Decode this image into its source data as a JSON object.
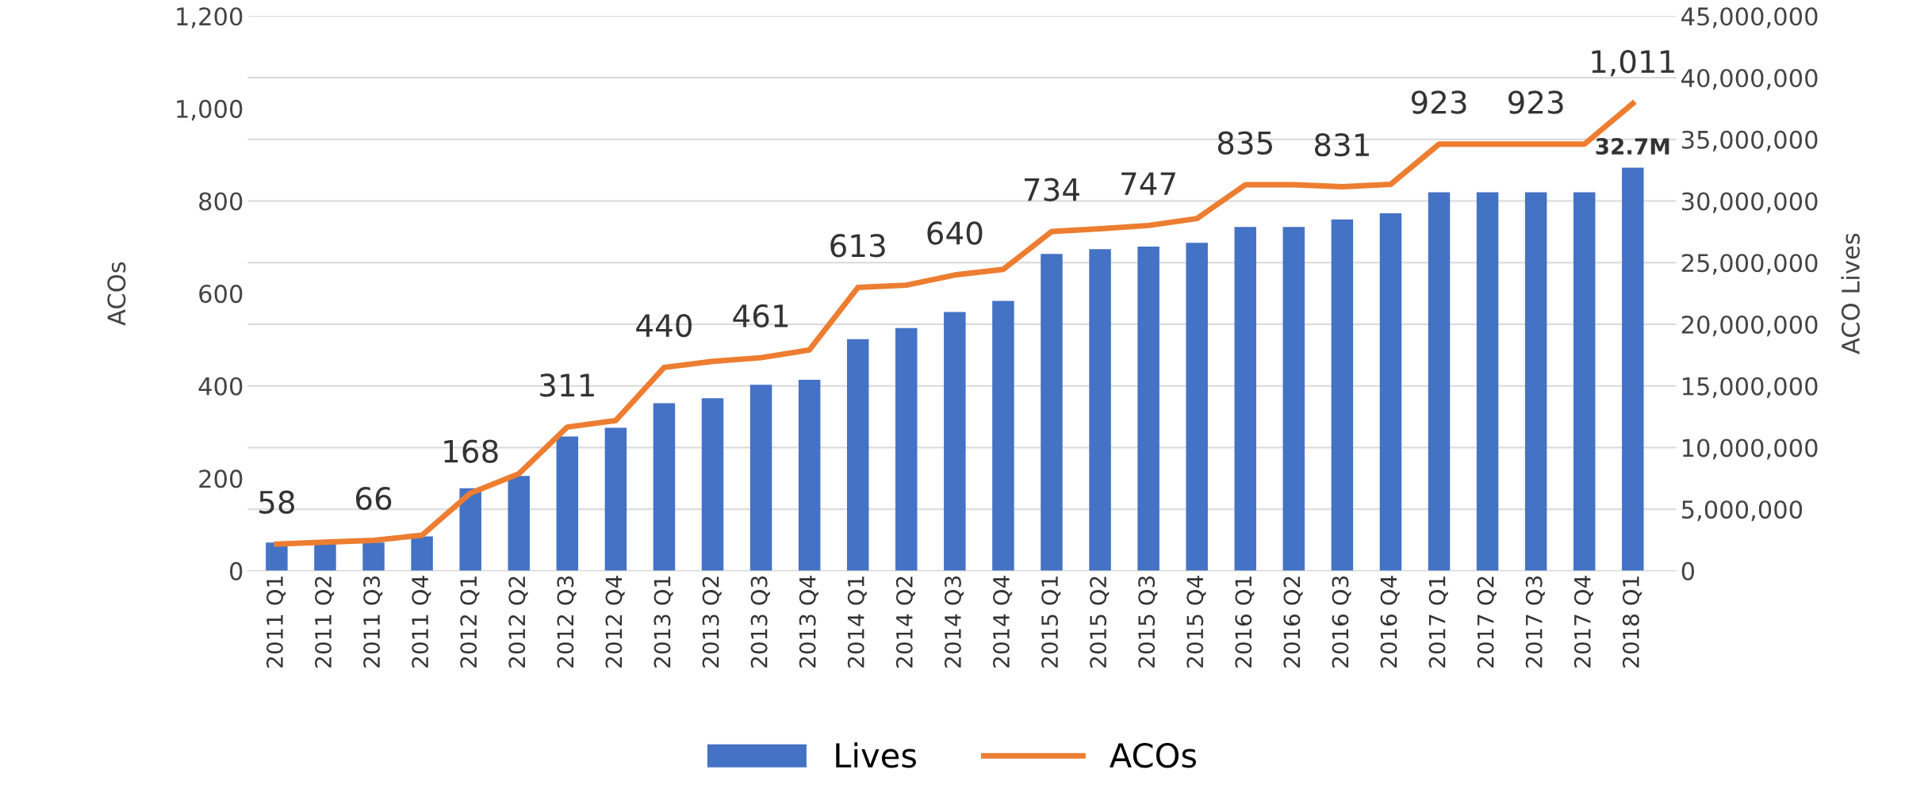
{
  "chart_data": {
    "type": "bar",
    "categories": [
      "2011 Q1",
      "2011 Q2",
      "2011 Q3",
      "2011 Q4",
      "2012 Q1",
      "2012 Q2",
      "2012 Q3",
      "2012 Q4",
      "2013 Q1",
      "2013 Q2",
      "2013 Q3",
      "2013 Q4",
      "2014 Q1",
      "2014 Q2",
      "2014 Q3",
      "2014 Q4",
      "2015 Q1",
      "2015 Q2",
      "2015 Q3",
      "2015 Q4",
      "2016 Q1",
      "2016 Q2",
      "2016 Q3",
      "2016 Q4",
      "2017 Q1",
      "2017 Q2",
      "2017 Q3",
      "2017 Q4",
      "2018 Q1"
    ],
    "series": [
      {
        "name": "Lives",
        "axis": "y2",
        "color": "#4472c4",
        "values": [
          2300000,
          2200000,
          2300000,
          2800000,
          6700000,
          7700000,
          10900000,
          11600000,
          13600000,
          14000000,
          15100000,
          15500000,
          18800000,
          19700000,
          21000000,
          21900000,
          25700000,
          26100000,
          26300000,
          26600000,
          27900000,
          27900000,
          28500000,
          29000000,
          30700000,
          30700000,
          30700000,
          30700000,
          32700000
        ],
        "value_labels": [
          null,
          null,
          null,
          null,
          null,
          null,
          null,
          null,
          null,
          null,
          null,
          null,
          null,
          null,
          null,
          null,
          null,
          null,
          null,
          null,
          null,
          null,
          null,
          null,
          null,
          null,
          null,
          null,
          "32.7M"
        ]
      },
      {
        "name": "ACOs",
        "type": "line",
        "axis": "y",
        "color": "#ed7d31",
        "values": [
          58,
          62,
          66,
          77,
          168,
          210,
          311,
          325,
          440,
          453,
          461,
          478,
          613,
          618,
          640,
          652,
          734,
          740,
          747,
          762,
          835,
          835,
          831,
          836,
          923,
          923,
          923,
          923,
          1011
        ],
        "value_labels": [
          "58",
          null,
          "66",
          null,
          "168",
          null,
          "311",
          null,
          "440",
          null,
          "461",
          null,
          "613",
          null,
          "640",
          null,
          "734",
          null,
          "747",
          null,
          "835",
          null,
          "831",
          null,
          "923",
          null,
          "923",
          null,
          "1,011"
        ]
      }
    ],
    "ylabel": "ACOs",
    "y2label": "ACO Lives",
    "ylim": [
      0,
      1200
    ],
    "yticks": [
      0,
      {
        "value": 200,
        "label": "200"
      },
      400,
      600,
      800,
      {
        "value": 1000,
        "label": "1,000"
      },
      {
        "value": 1200,
        "label": "1,200"
      }
    ],
    "y2lim": [
      0,
      45000000
    ],
    "y2ticks": [
      0,
      {
        "value": 5000000,
        "label": "5,000,000"
      },
      {
        "value": 10000000,
        "label": "10,000,000"
      },
      {
        "value": 15000000,
        "label": "15,000,000"
      },
      {
        "value": 20000000,
        "label": "20,000,000"
      },
      {
        "value": 25000000,
        "label": "25,000,000"
      },
      {
        "value": 30000000,
        "label": "30,000,000"
      },
      {
        "value": 35000000,
        "label": "35,000,000"
      },
      {
        "value": 40000000,
        "label": "40,000,000"
      },
      {
        "value": 45000000,
        "label": "45,000,000"
      }
    ],
    "grid": "y",
    "legend": "bottom",
    "line_style": "solid",
    "marker": "none"
  }
}
